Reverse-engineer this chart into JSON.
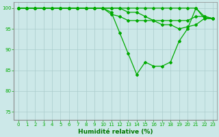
{
  "x_labels": [
    0,
    1,
    2,
    3,
    4,
    5,
    6,
    7,
    8,
    9,
    10,
    11,
    12,
    13,
    14,
    15,
    16,
    17,
    18,
    19,
    20,
    21,
    22,
    23
  ],
  "lines": [
    {
      "x": [
        0,
        1,
        2,
        3,
        4,
        5,
        6,
        7,
        8,
        9,
        10,
        11,
        12,
        13,
        14,
        15,
        16,
        17,
        18,
        19,
        20,
        21,
        22,
        23
      ],
      "y": [
        100,
        100,
        100,
        100,
        100,
        100,
        100,
        100,
        100,
        100,
        100,
        100,
        100,
        100,
        100,
        100,
        100,
        100,
        100,
        100,
        100,
        100,
        98,
        97.5
      ]
    },
    {
      "x": [
        0,
        1,
        2,
        3,
        4,
        5,
        6,
        7,
        8,
        9,
        10,
        11,
        12,
        13,
        14,
        15,
        16,
        17,
        18,
        19,
        20,
        21,
        22,
        23
      ],
      "y": [
        100,
        100,
        100,
        100,
        100,
        100,
        100,
        100,
        100,
        100,
        100,
        100,
        100,
        99,
        99,
        98,
        97,
        97,
        97,
        97,
        97,
        98,
        98,
        97.5
      ]
    },
    {
      "x": [
        0,
        1,
        2,
        3,
        4,
        5,
        6,
        7,
        8,
        9,
        10,
        11,
        12,
        13,
        14,
        15,
        16,
        17,
        18,
        19,
        20,
        21,
        22,
        23
      ],
      "y": [
        100,
        100,
        100,
        100,
        100,
        100,
        100,
        100,
        100,
        100,
        100,
        98.5,
        98,
        97,
        97,
        97,
        97,
        96,
        96,
        95,
        95.5,
        96,
        97.5,
        97.5
      ]
    },
    {
      "x": [
        0,
        1,
        2,
        3,
        4,
        5,
        6,
        7,
        8,
        9,
        10,
        11,
        12,
        13,
        14,
        15,
        16,
        17,
        18,
        19,
        20,
        21,
        22,
        23
      ],
      "y": [
        100,
        100,
        100,
        100,
        100,
        100,
        100,
        100,
        100,
        100,
        100,
        99,
        94,
        89,
        84,
        87,
        86,
        86,
        87,
        92,
        95,
        100,
        97.5,
        97.5
      ]
    }
  ],
  "line_color": "#00AA00",
  "marker": "D",
  "markersize": 2.0,
  "linewidth": 0.9,
  "background_color": "#cce8e8",
  "grid_color": "#aacccc",
  "xlabel": "Humidité relative (%)",
  "xlabel_fontsize": 6.5,
  "xlabel_color": "#007700",
  "tick_fontsize": 5.0,
  "ylim": [
    73,
    101.5
  ],
  "yticks": [
    75,
    80,
    85,
    90,
    95,
    100
  ],
  "xlim": [
    -0.5,
    23.5
  ]
}
